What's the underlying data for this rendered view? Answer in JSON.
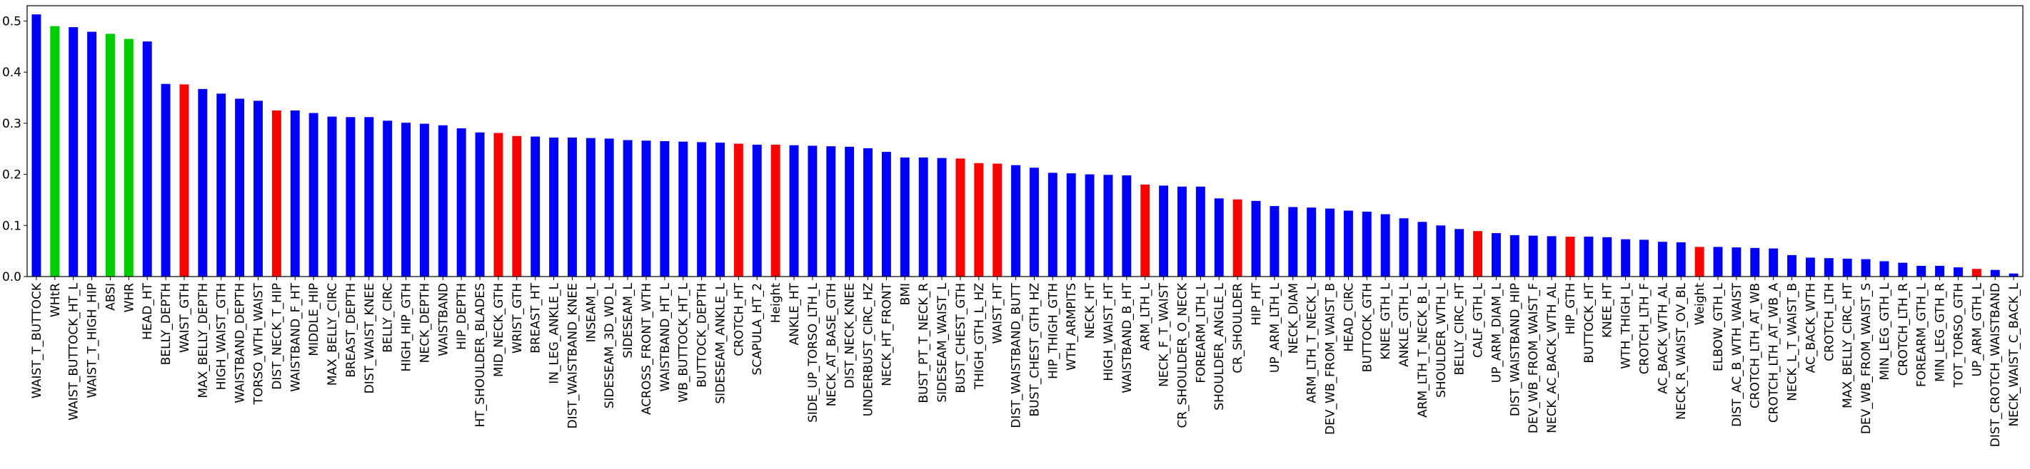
{
  "chart_data": {
    "type": "bar",
    "title": "",
    "xlabel": "",
    "ylabel": "",
    "ylim": [
      0,
      0.53
    ],
    "yticks": [
      0.0,
      0.1,
      0.2,
      0.3,
      0.4,
      0.5
    ],
    "ytick_labels": [
      "0.0",
      "0.1",
      "0.2",
      "0.3",
      "0.4",
      "0.5"
    ],
    "grid": false,
    "legend": false,
    "colors": {
      "blue": "#0000ff",
      "green": "#00cc00",
      "red": "#ff0000"
    },
    "categories": [
      "WAIST_T_BUTTOCK",
      "WHtR",
      "WAIST_BUTTOCK_HT_L",
      "WAIST_T_HIGH_HIP",
      "ABSI",
      "WHR",
      "HEAD_HT",
      "BELLY_DEPTH",
      "WAIST_GTH",
      "MAX_BELLY_DEPTH",
      "HIGH_WAIST_GTH",
      "WAISTBAND_DEPTH",
      "TORSO_WTH_WAIST",
      "DIST_NECK_T_HIP",
      "WAISTBAND_F_HT",
      "MIDDLE_HIP",
      "MAX_BELLY_CIRC",
      "BREAST_DEPTH",
      "DIST_WAIST_KNEE",
      "BELLY_CIRC",
      "HIGH_HIP_GTH",
      "NECK_DEPTH",
      "WAISTBAND",
      "HIP_DEPTH",
      "HT_SHOULDER_BLADES",
      "MID_NECK_GTH",
      "WRIST_GTH",
      "BREAST_HT",
      "IN_LEG_ANKLE_L",
      "DIST_WAISTBAND_KNEE",
      "INSEAM_L",
      "SIDESEAM_3D_WD_L",
      "SIDESEAM_L",
      "ACROSS_FRONT_WTH",
      "WAISTBAND_HT_L",
      "WB_BUTTOCK_HT_L",
      "BUTTOCK_DEPTH",
      "SIDESEAM_ANKLE_L",
      "CROTCH_HT",
      "SCAPULA_HT_2",
      "Height",
      "ANKLE_HT",
      "SIDE_UP_TORSO_LTH_L",
      "NECK_AT_BASE_GTH",
      "DIST_NECK_KNEE",
      "UNDERBUST_CIRC_HZ",
      "NECK_HT_FRONT",
      "BMI",
      "BUST_PT_T_NECK_R",
      "SIDESEAM_WAIST_L",
      "BUST_CHEST_GTH",
      "THIGH_GTH_L_HZ",
      "WAIST_HT",
      "DIST_WAISTBAND_BUTT",
      "BUST_CHEST_GTH_HZ",
      "HIP_THIGH_GTH",
      "WTH_ARMPITS",
      "NECK_HT",
      "HIGH_WAIST_HT",
      "WAISTBAND_B_HT",
      "ARM_LTH_L",
      "NECK_F_T_WAIST",
      "CR_SHOULDER_O_NECK",
      "FOREARM_LTH_L",
      "SHOULDER_ANGLE_L",
      "CR_SHOULDER",
      "HIP_HT",
      "UP_ARM_LTH_L",
      "NECK_DIAM",
      "ARM_LTH_T_NECK_L",
      "DEV_WB_FROM_WAIST_B",
      "HEAD_CIRC",
      "BUTTOCK_GTH",
      "KNEE_GTH_L",
      "ANKLE_GTH_L",
      "ARM_LTH_T_NECK_B_L",
      "SHOULDER_WTH_L",
      "BELLY_CIRC_HT",
      "CALF_GTH_L",
      "UP_ARM_DIAM_L",
      "DIST_WAISTBAND_HIP",
      "DEV_WB_FROM_WAIST_F",
      "NECK_AC_BACK_WTH_AL",
      "HIP_GTH",
      "BUTTOCK_HT",
      "KNEE_HT",
      "WTH_THIGH_L",
      "CROTCH_LTH_F",
      "AC_BACK_WTH_AL",
      "NECK_R_WAIST_OV_BL",
      "Weight",
      "ELBOW_GTH_L",
      "DIST_AC_B_WTH_WAIST",
      "CROTCH_LTH_AT_WB",
      "CROTCH_LTH_AT_WB_A",
      "NECK_L_T_WAIST_B",
      "AC_BACK_WTH",
      "CROTCH_LTH",
      "MAX_BELLY_CIRC_HT",
      "DEV_WB_FROM_WAIST_S",
      "MIN_LEG_GTH_L",
      "CROTCH_LTH_R",
      "FOREARM_GTH_L",
      "MIN_LEG_GTH_R",
      "TOT_TORSO_GTH",
      "UP_ARM_GTH_L",
      "DIST_CROTCH_WAISTBAND",
      "NECK_WAIST_C_BACK_L"
    ],
    "values": [
      0.513,
      0.49,
      0.488,
      0.479,
      0.475,
      0.465,
      0.46,
      0.377,
      0.376,
      0.367,
      0.358,
      0.348,
      0.344,
      0.325,
      0.325,
      0.32,
      0.313,
      0.312,
      0.312,
      0.305,
      0.301,
      0.299,
      0.296,
      0.29,
      0.282,
      0.281,
      0.275,
      0.274,
      0.272,
      0.272,
      0.271,
      0.27,
      0.267,
      0.266,
      0.265,
      0.264,
      0.263,
      0.262,
      0.26,
      0.258,
      0.258,
      0.257,
      0.256,
      0.255,
      0.254,
      0.251,
      0.244,
      0.233,
      0.233,
      0.232,
      0.231,
      0.222,
      0.221,
      0.218,
      0.213,
      0.203,
      0.202,
      0.2,
      0.199,
      0.198,
      0.18,
      0.178,
      0.176,
      0.176,
      0.153,
      0.151,
      0.148,
      0.138,
      0.136,
      0.135,
      0.133,
      0.129,
      0.127,
      0.122,
      0.114,
      0.107,
      0.1,
      0.093,
      0.089,
      0.085,
      0.081,
      0.08,
      0.079,
      0.078,
      0.078,
      0.077,
      0.073,
      0.072,
      0.068,
      0.067,
      0.058,
      0.058,
      0.057,
      0.056,
      0.055,
      0.042,
      0.037,
      0.036,
      0.035,
      0.034,
      0.03,
      0.027,
      0.021,
      0.021,
      0.018,
      0.015,
      0.013,
      0.006
    ],
    "bar_colors": [
      "blue",
      "green",
      "blue",
      "blue",
      "green",
      "green",
      "blue",
      "blue",
      "red",
      "blue",
      "blue",
      "blue",
      "blue",
      "red",
      "blue",
      "blue",
      "blue",
      "blue",
      "blue",
      "blue",
      "blue",
      "blue",
      "blue",
      "blue",
      "blue",
      "red",
      "red",
      "blue",
      "blue",
      "blue",
      "blue",
      "blue",
      "blue",
      "blue",
      "blue",
      "blue",
      "blue",
      "blue",
      "red",
      "blue",
      "red",
      "blue",
      "blue",
      "blue",
      "blue",
      "blue",
      "blue",
      "blue",
      "blue",
      "blue",
      "red",
      "red",
      "red",
      "blue",
      "blue",
      "blue",
      "blue",
      "blue",
      "blue",
      "blue",
      "red",
      "blue",
      "blue",
      "blue",
      "blue",
      "red",
      "blue",
      "blue",
      "blue",
      "blue",
      "blue",
      "blue",
      "blue",
      "blue",
      "blue",
      "blue",
      "blue",
      "blue",
      "red",
      "blue",
      "blue",
      "blue",
      "blue",
      "red",
      "blue",
      "blue",
      "blue",
      "blue",
      "blue",
      "blue",
      "red",
      "blue",
      "blue",
      "blue",
      "blue",
      "blue",
      "blue",
      "blue",
      "blue",
      "blue",
      "blue",
      "blue",
      "blue",
      "blue",
      "blue",
      "red",
      "blue",
      "blue"
    ]
  }
}
